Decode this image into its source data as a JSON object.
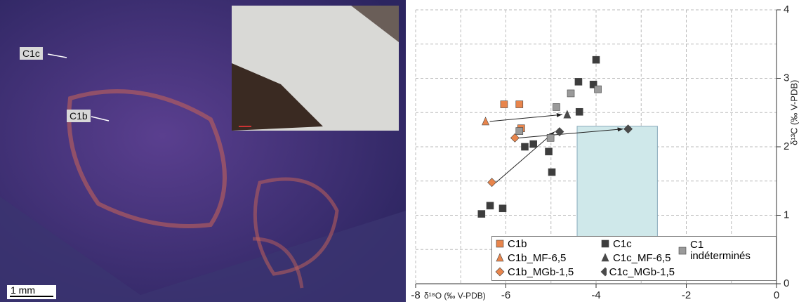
{
  "image": {
    "labels": [
      "C1c",
      "C1b"
    ],
    "scale_bar": "1 mm"
  },
  "chart_data": {
    "type": "scatter",
    "x_label": "δ¹⁸O (‰ V-PDB)",
    "y_label": "δ¹³C (‰ V-PDB)",
    "xlim": [
      -8,
      0
    ],
    "xticks": [
      -8,
      -6,
      -4,
      -2,
      0
    ],
    "x_minor_grid": [
      -7,
      -5,
      -3,
      -1
    ],
    "ylim": [
      0,
      4
    ],
    "yticks": [
      0,
      1,
      2,
      3,
      4
    ],
    "y_minor_grid": [
      0.5,
      1.5,
      2.5,
      3.5
    ],
    "grid": true,
    "y_axis_side": "right",
    "shaded_region": {
      "x": [
        -4.42,
        -2.64
      ],
      "y": [
        0.6,
        2.3
      ],
      "color": "#cfe8ea"
    },
    "series": [
      {
        "name": "C1b",
        "color": "#e8854c",
        "marker": "square",
        "x": [
          -6.04,
          -5.7,
          -5.66
        ],
        "values": [
          2.62,
          2.62,
          2.27
        ]
      },
      {
        "name": "C1c",
        "color": "#3d3d3d",
        "marker": "square",
        "x": [
          -4.0,
          -4.39,
          -4.06,
          -4.37,
          -5.58,
          -5.39,
          -5.05,
          -4.98,
          -6.54,
          -6.35,
          -6.07
        ],
        "values": [
          3.27,
          2.95,
          2.91,
          2.51,
          2.0,
          2.04,
          1.93,
          1.63,
          1.02,
          1.14,
          1.1
        ]
      },
      {
        "name": "C1 indéterminés",
        "color": "#9a9a9a",
        "marker": "square",
        "x": [
          -4.56,
          -3.96,
          -4.88,
          -5.7,
          -5.01
        ],
        "values": [
          2.78,
          2.84,
          2.58,
          2.23,
          2.13
        ]
      },
      {
        "name": "C1b_MF-6,5",
        "color": "#e8854c",
        "marker": "triangle",
        "x": [
          -6.45
        ],
        "values": [
          2.37
        ]
      },
      {
        "name": "C1c_MF-6,5",
        "color": "#4a4a4a",
        "marker": "triangle",
        "x": [
          -4.64
        ],
        "values": [
          2.47
        ]
      },
      {
        "name": "C1b_MGb-1,5",
        "color": "#e8854c",
        "marker": "diamond",
        "x": [
          -6.31,
          -5.8
        ],
        "values": [
          1.48,
          2.13
        ]
      },
      {
        "name": "C1c_MGb-1,5",
        "color": "#4a4a4a",
        "marker": "diamond",
        "x": [
          -4.81,
          -3.29
        ],
        "values": [
          2.22,
          2.26
        ]
      }
    ]
  }
}
